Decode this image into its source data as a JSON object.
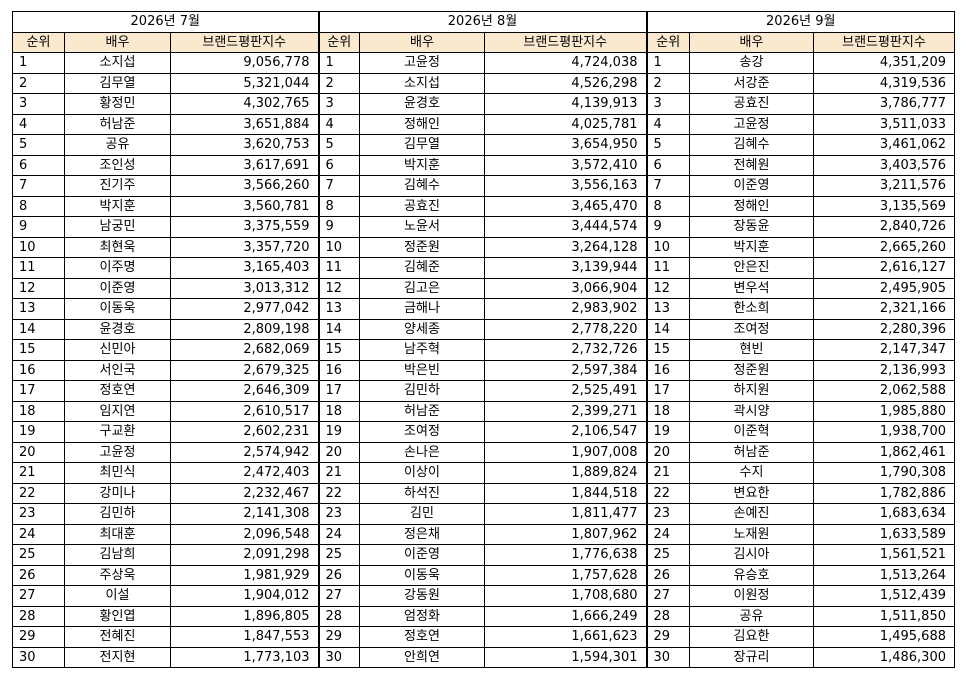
{
  "headers": {
    "rank": "순위",
    "actor": "배우",
    "index": "브랜드평판지수"
  },
  "months": [
    {
      "title": "2026년 7월",
      "rows": [
        [
          "1",
          "소지섭",
          "9,056,778"
        ],
        [
          "2",
          "김무열",
          "5,321,044"
        ],
        [
          "3",
          "황정민",
          "4,302,765"
        ],
        [
          "4",
          "허남준",
          "3,651,884"
        ],
        [
          "5",
          "공유",
          "3,620,753"
        ],
        [
          "6",
          "조인성",
          "3,617,691"
        ],
        [
          "7",
          "진기주",
          "3,566,260"
        ],
        [
          "8",
          "박지훈",
          "3,560,781"
        ],
        [
          "9",
          "남궁민",
          "3,375,559"
        ],
        [
          "10",
          "최현욱",
          "3,357,720"
        ],
        [
          "11",
          "이주명",
          "3,165,403"
        ],
        [
          "12",
          "이준영",
          "3,013,312"
        ],
        [
          "13",
          "이동욱",
          "2,977,042"
        ],
        [
          "14",
          "윤경호",
          "2,809,198"
        ],
        [
          "15",
          "신민아",
          "2,682,069"
        ],
        [
          "16",
          "서인국",
          "2,679,325"
        ],
        [
          "17",
          "정호연",
          "2,646,309"
        ],
        [
          "18",
          "임지연",
          "2,610,517"
        ],
        [
          "19",
          "구교환",
          "2,602,231"
        ],
        [
          "20",
          "고윤정",
          "2,574,942"
        ],
        [
          "21",
          "최민식",
          "2,472,403"
        ],
        [
          "22",
          "강미나",
          "2,232,467"
        ],
        [
          "23",
          "김민하",
          "2,141,308"
        ],
        [
          "24",
          "최대훈",
          "2,096,548"
        ],
        [
          "25",
          "김남희",
          "2,091,298"
        ],
        [
          "26",
          "주상욱",
          "1,981,929"
        ],
        [
          "27",
          "이설",
          "1,904,012"
        ],
        [
          "28",
          "황인엽",
          "1,896,805"
        ],
        [
          "29",
          "전혜진",
          "1,847,553"
        ],
        [
          "30",
          "전지현",
          "1,773,103"
        ]
      ]
    },
    {
      "title": "2026년 8월",
      "rows": [
        [
          "1",
          "고윤정",
          "4,724,038"
        ],
        [
          "2",
          "소지섭",
          "4,526,298"
        ],
        [
          "3",
          "윤경호",
          "4,139,913"
        ],
        [
          "4",
          "정해인",
          "4,025,781"
        ],
        [
          "5",
          "김무열",
          "3,654,950"
        ],
        [
          "6",
          "박지훈",
          "3,572,410"
        ],
        [
          "7",
          "김혜수",
          "3,556,163"
        ],
        [
          "8",
          "공효진",
          "3,465,470"
        ],
        [
          "9",
          "노윤서",
          "3,444,574"
        ],
        [
          "10",
          "정준원",
          "3,264,128"
        ],
        [
          "11",
          "김혜준",
          "3,139,944"
        ],
        [
          "12",
          "김고은",
          "3,066,904"
        ],
        [
          "13",
          "금해나",
          "2,983,902"
        ],
        [
          "14",
          "양세종",
          "2,778,220"
        ],
        [
          "15",
          "남주혁",
          "2,732,726"
        ],
        [
          "16",
          "박은빈",
          "2,597,384"
        ],
        [
          "17",
          "김민하",
          "2,525,491"
        ],
        [
          "18",
          "허남준",
          "2,399,271"
        ],
        [
          "19",
          "조여정",
          "2,106,547"
        ],
        [
          "20",
          "손나은",
          "1,907,008"
        ],
        [
          "21",
          "이상이",
          "1,889,824"
        ],
        [
          "22",
          "하석진",
          "1,844,518"
        ],
        [
          "23",
          "김민",
          "1,811,477"
        ],
        [
          "24",
          "정은채",
          "1,807,962"
        ],
        [
          "25",
          "이준영",
          "1,776,638"
        ],
        [
          "26",
          "이동욱",
          "1,757,628"
        ],
        [
          "27",
          "강동원",
          "1,708,680"
        ],
        [
          "28",
          "엄정화",
          "1,666,249"
        ],
        [
          "29",
          "정호연",
          "1,661,623"
        ],
        [
          "30",
          "안희연",
          "1,594,301"
        ]
      ]
    },
    {
      "title": "2026년 9월",
      "rows": [
        [
          "1",
          "송강",
          "4,351,209"
        ],
        [
          "2",
          "서강준",
          "4,319,536"
        ],
        [
          "3",
          "공효진",
          "3,786,777"
        ],
        [
          "4",
          "고윤정",
          "3,511,033"
        ],
        [
          "5",
          "김혜수",
          "3,461,062"
        ],
        [
          "6",
          "전혜원",
          "3,403,576"
        ],
        [
          "7",
          "이준영",
          "3,211,576"
        ],
        [
          "8",
          "정해인",
          "3,135,569"
        ],
        [
          "9",
          "장동윤",
          "2,840,726"
        ],
        [
          "10",
          "박지훈",
          "2,665,260"
        ],
        [
          "11",
          "안은진",
          "2,616,127"
        ],
        [
          "12",
          "변우석",
          "2,495,905"
        ],
        [
          "13",
          "한소희",
          "2,321,166"
        ],
        [
          "14",
          "조여정",
          "2,280,396"
        ],
        [
          "15",
          "현빈",
          "2,147,347"
        ],
        [
          "16",
          "정준원",
          "2,136,993"
        ],
        [
          "17",
          "하지원",
          "2,062,588"
        ],
        [
          "18",
          "곽시양",
          "1,985,880"
        ],
        [
          "19",
          "이준혁",
          "1,938,700"
        ],
        [
          "20",
          "허남준",
          "1,862,461"
        ],
        [
          "21",
          "수지",
          "1,790,308"
        ],
        [
          "22",
          "변요한",
          "1,782,886"
        ],
        [
          "23",
          "손예진",
          "1,683,634"
        ],
        [
          "24",
          "노재원",
          "1,633,589"
        ],
        [
          "25",
          "김시아",
          "1,561,521"
        ],
        [
          "26",
          "유승호",
          "1,513,264"
        ],
        [
          "27",
          "이원정",
          "1,512,439"
        ],
        [
          "28",
          "공유",
          "1,511,850"
        ],
        [
          "29",
          "김요한",
          "1,495,688"
        ],
        [
          "30",
          "장규리",
          "1,486,300"
        ]
      ]
    }
  ]
}
